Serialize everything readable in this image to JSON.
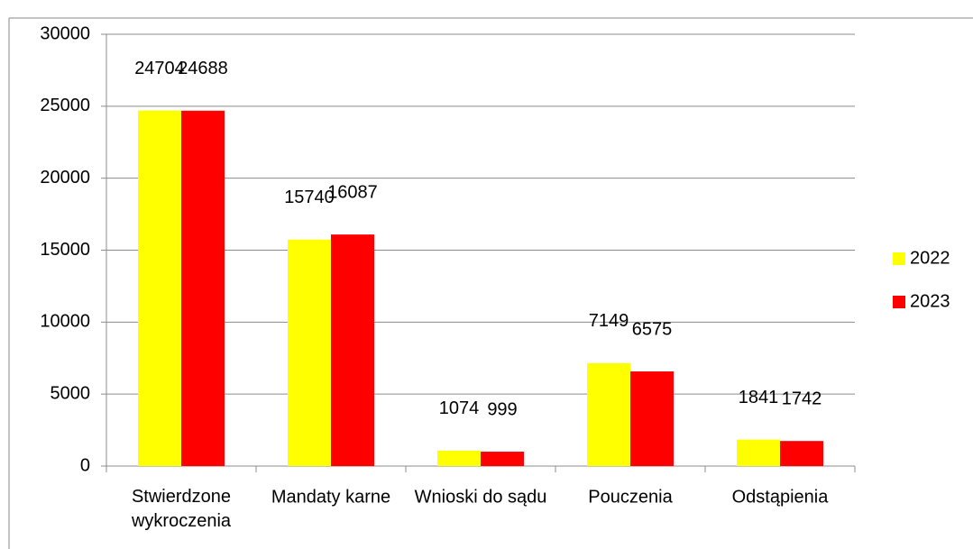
{
  "chart_data": {
    "type": "bar",
    "categories": [
      "Stwierdzone wykroczenia",
      "Mandaty karne",
      "Wnioski do sądu",
      "Pouczenia",
      "Odstąpienia"
    ],
    "series": [
      {
        "name": "2022",
        "color": "#ffff00",
        "values": [
          24704,
          15740,
          1074,
          7149,
          1841
        ]
      },
      {
        "name": "2023",
        "color": "#ff0000",
        "values": [
          24688,
          16087,
          999,
          6575,
          1742
        ]
      }
    ],
    "ylim": [
      0,
      30000
    ],
    "yticks": [
      0,
      5000,
      10000,
      15000,
      20000,
      25000,
      30000
    ],
    "grid": true,
    "legend": "right"
  }
}
